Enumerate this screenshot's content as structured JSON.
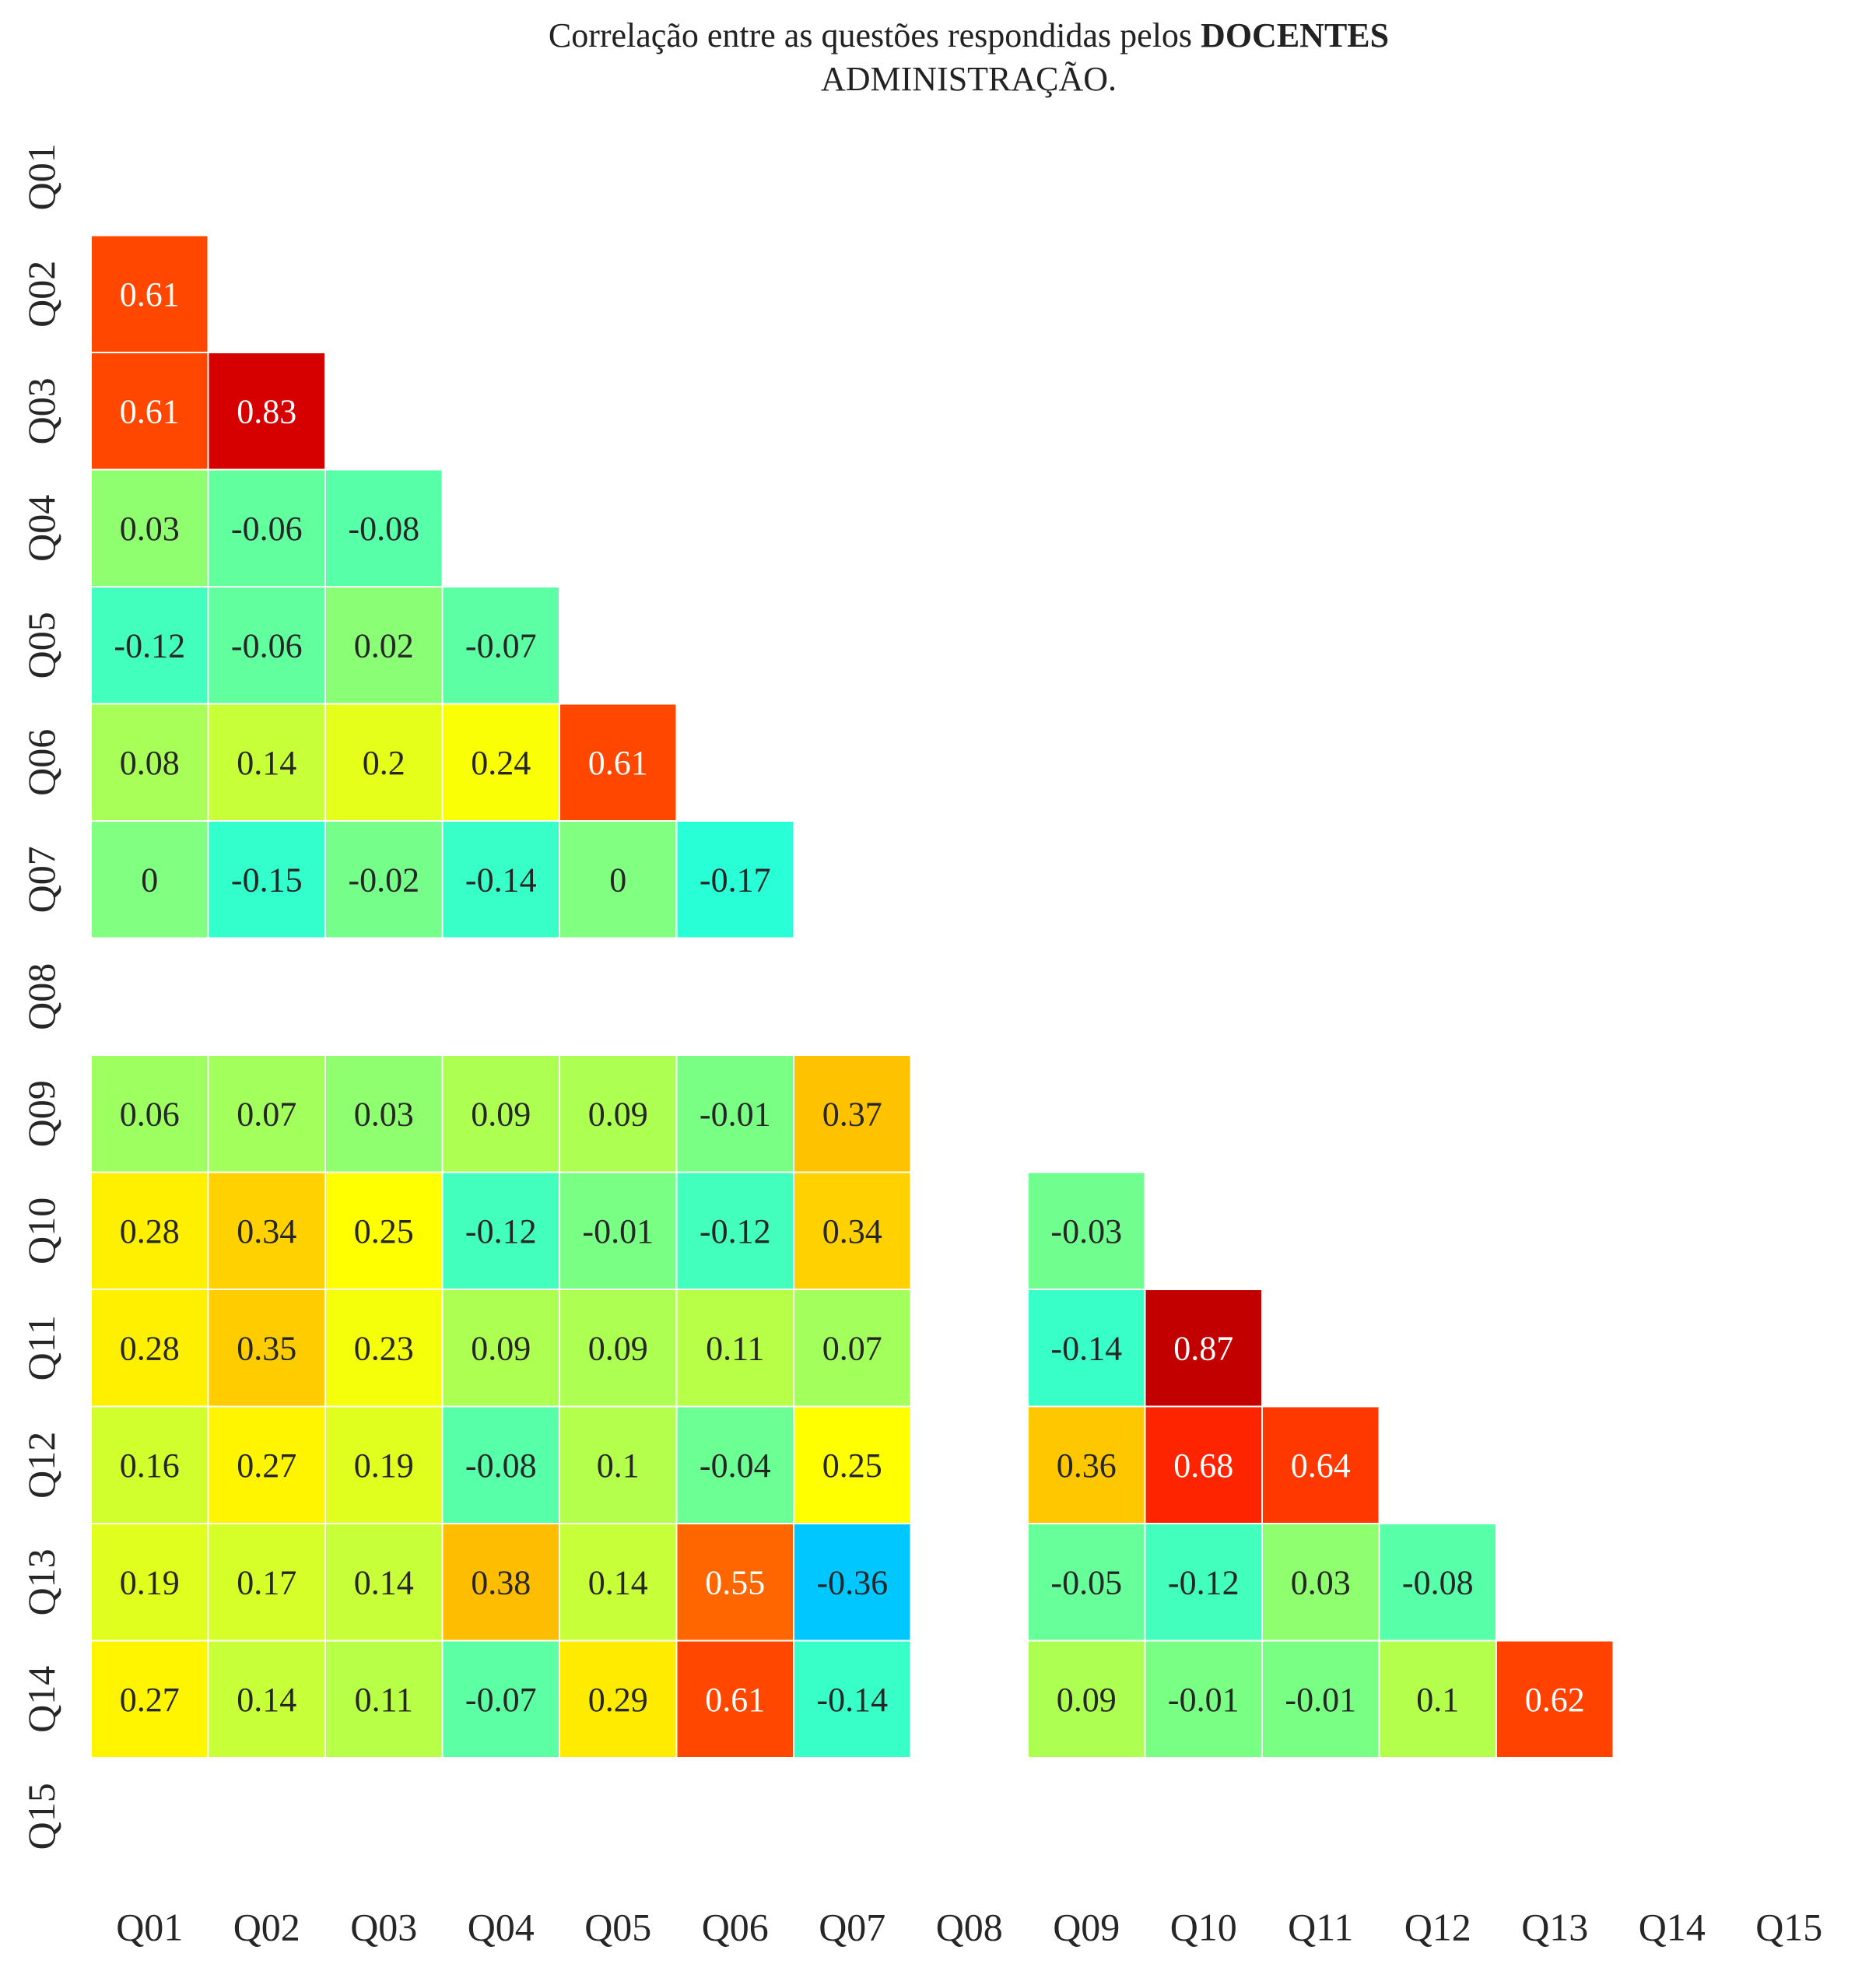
{
  "chart_data": {
    "type": "heatmap",
    "title": {
      "prefix": "Correlação entre as questões respondidas pelos",
      "emphasis": "DOCENTES",
      "line2": "ADMINISTRAÇÃO."
    },
    "xlabels": [
      "Q01",
      "Q02",
      "Q03",
      "Q04",
      "Q05",
      "Q06",
      "Q07",
      "Q08",
      "Q09",
      "Q10",
      "Q11",
      "Q12",
      "Q13",
      "Q14",
      "Q15"
    ],
    "ylabels": [
      "Q01",
      "Q02",
      "Q03",
      "Q04",
      "Q05",
      "Q06",
      "Q07",
      "Q08",
      "Q09",
      "Q10",
      "Q11",
      "Q12",
      "Q13",
      "Q14",
      "Q15"
    ],
    "mask": "upper-triangle",
    "colormap": "jet",
    "value_range": [
      -1,
      1
    ],
    "matrix": [
      [
        null,
        null,
        null,
        null,
        null,
        null,
        null,
        null,
        null,
        null,
        null,
        null,
        null,
        null,
        null
      ],
      [
        0.61,
        null,
        null,
        null,
        null,
        null,
        null,
        null,
        null,
        null,
        null,
        null,
        null,
        null,
        null
      ],
      [
        0.61,
        0.83,
        null,
        null,
        null,
        null,
        null,
        null,
        null,
        null,
        null,
        null,
        null,
        null,
        null
      ],
      [
        0.03,
        -0.06,
        -0.08,
        null,
        null,
        null,
        null,
        null,
        null,
        null,
        null,
        null,
        null,
        null,
        null
      ],
      [
        -0.12,
        -0.06,
        0.02,
        -0.07,
        null,
        null,
        null,
        null,
        null,
        null,
        null,
        null,
        null,
        null,
        null
      ],
      [
        0.08,
        0.14,
        0.2,
        0.24,
        0.61,
        null,
        null,
        null,
        null,
        null,
        null,
        null,
        null,
        null,
        null
      ],
      [
        0,
        -0.15,
        -0.02,
        -0.14,
        0,
        -0.17,
        null,
        null,
        null,
        null,
        null,
        null,
        null,
        null,
        null
      ],
      [
        null,
        null,
        null,
        null,
        null,
        null,
        null,
        null,
        null,
        null,
        null,
        null,
        null,
        null,
        null
      ],
      [
        0.06,
        0.07,
        0.03,
        0.09,
        0.09,
        -0.01,
        0.37,
        null,
        null,
        null,
        null,
        null,
        null,
        null,
        null
      ],
      [
        0.28,
        0.34,
        0.25,
        -0.12,
        -0.01,
        -0.12,
        0.34,
        null,
        -0.03,
        null,
        null,
        null,
        null,
        null,
        null
      ],
      [
        0.28,
        0.35,
        0.23,
        0.09,
        0.09,
        0.11,
        0.07,
        null,
        -0.14,
        0.87,
        null,
        null,
        null,
        null,
        null
      ],
      [
        0.16,
        0.27,
        0.19,
        -0.08,
        0.1,
        -0.04,
        0.25,
        null,
        0.36,
        0.68,
        0.64,
        null,
        null,
        null,
        null
      ],
      [
        0.19,
        0.17,
        0.14,
        0.38,
        0.14,
        0.55,
        -0.36,
        null,
        -0.05,
        -0.12,
        0.03,
        -0.08,
        null,
        null,
        null
      ],
      [
        0.27,
        0.14,
        0.11,
        -0.07,
        0.29,
        0.61,
        -0.14,
        null,
        0.09,
        -0.01,
        -0.01,
        0.1,
        0.62,
        null,
        null
      ],
      [
        null,
        null,
        null,
        null,
        null,
        null,
        null,
        null,
        null,
        null,
        null,
        null,
        null,
        null,
        null
      ]
    ]
  }
}
